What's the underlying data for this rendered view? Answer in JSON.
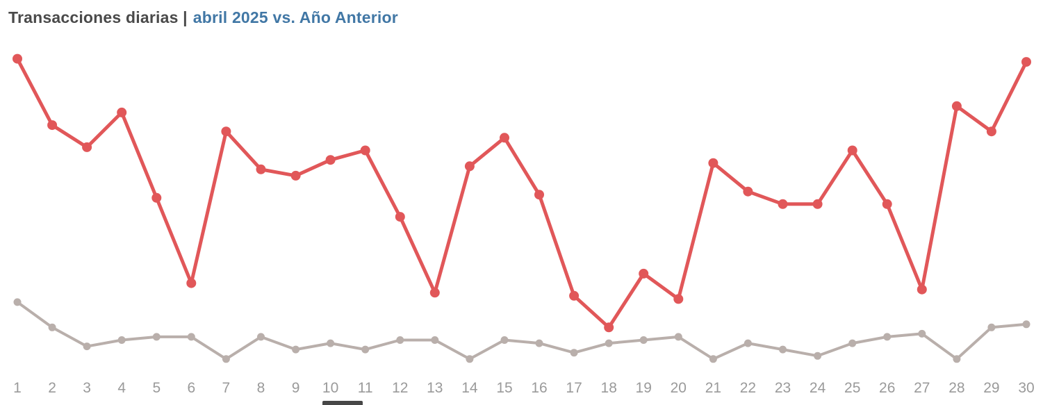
{
  "title": {
    "main": "Transacciones diarias |",
    "accent": "abril 2025 vs. Año Anterior"
  },
  "chart_data": {
    "type": "line",
    "title": "Transacciones diarias | abril 2025 vs. Año Anterior",
    "xlabel": "",
    "ylabel": "",
    "x": [
      1,
      2,
      3,
      4,
      5,
      6,
      7,
      8,
      9,
      10,
      11,
      12,
      13,
      14,
      15,
      16,
      17,
      18,
      19,
      20,
      21,
      22,
      23,
      24,
      25,
      26,
      27,
      28,
      29,
      30
    ],
    "series": [
      {
        "name": "abril 2025",
        "color": "#e15759",
        "marker_radius": 7,
        "stroke_width": 5,
        "values": [
          99,
          78,
          71,
          82,
          55,
          28,
          76,
          64,
          62,
          67,
          70,
          49,
          25,
          65,
          74,
          56,
          24,
          14,
          31,
          23,
          66,
          57,
          53,
          53,
          70,
          53,
          26,
          84,
          76,
          98
        ]
      },
      {
        "name": "Año Anterior",
        "color": "#b9afab",
        "marker_radius": 5.5,
        "stroke_width": 4,
        "values": [
          22,
          14,
          8,
          10,
          11,
          11,
          4,
          11,
          7,
          9,
          7,
          10,
          10,
          4,
          10,
          9,
          6,
          9,
          10,
          11,
          4,
          9,
          7,
          5,
          9,
          11,
          12,
          4,
          14,
          15
        ]
      }
    ],
    "ylim": [
      0,
      100
    ],
    "grid": false,
    "legend": "none",
    "axis_label_color": "#9a9a9a",
    "note": "No y-axis is shown in the image; series values are estimated relative levels (0-100) read from point heights."
  }
}
